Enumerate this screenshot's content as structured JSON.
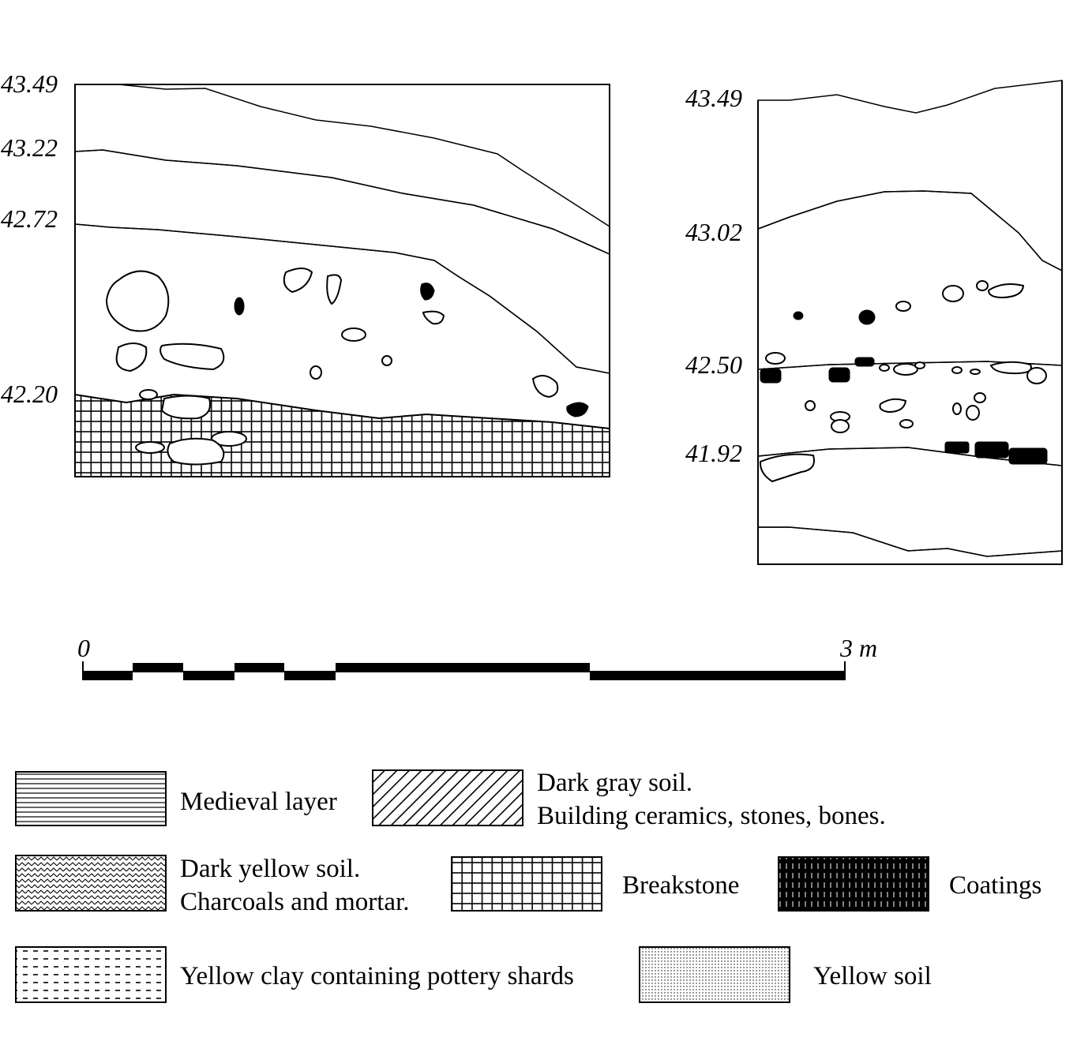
{
  "left_section": {
    "elevations": [
      "43.49",
      "43.22",
      "42.72",
      "42.20"
    ]
  },
  "right_section": {
    "elevations": [
      "43.49",
      "43.02",
      "42.50",
      "41.92"
    ]
  },
  "scale_bar": {
    "start_label": "0",
    "end_label": "3 m"
  },
  "legend": {
    "medieval": "Medieval layer",
    "dark_gray_1": "Dark gray soil.",
    "dark_gray_2": "Building ceramics, stones, bones.",
    "dark_yellow_1": "Dark yellow soil.",
    "dark_yellow_2": "Charcoals and mortar.",
    "breakstone": "Breakstone",
    "coatings": "Coatings",
    "yellow_clay": "Yellow clay containing pottery shards",
    "yellow_soil": "Yellow soil"
  }
}
